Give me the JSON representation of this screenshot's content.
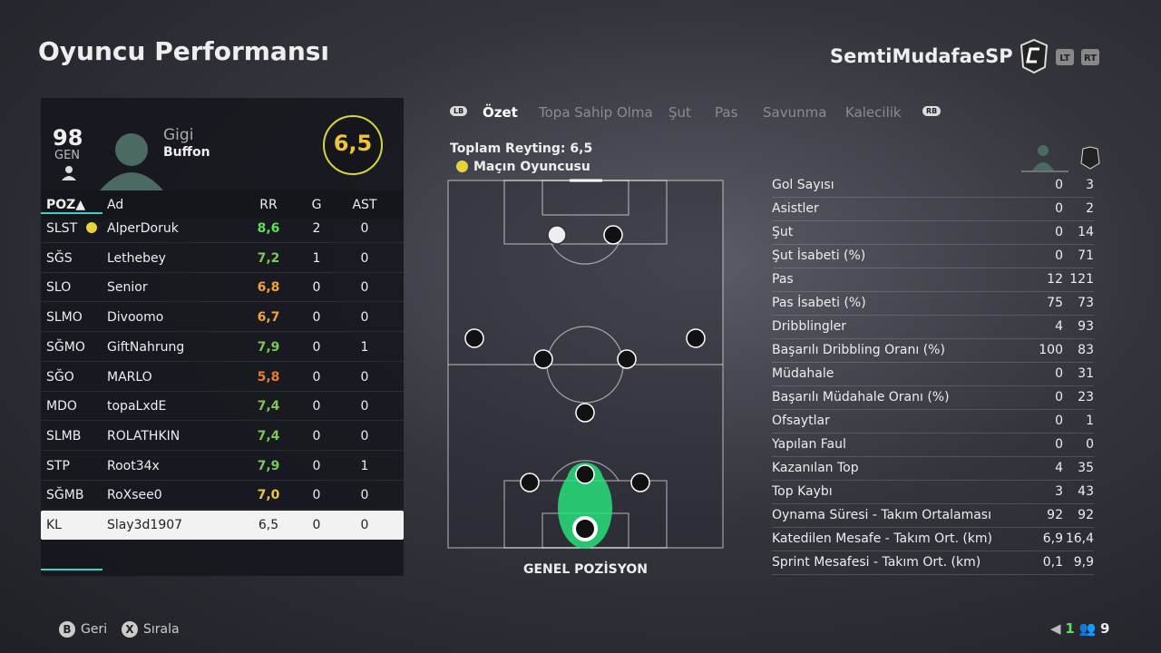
{
  "header": {
    "title": "Oyuncu Performansı",
    "team": "SemtiMudafaeSP",
    "buttons": [
      "LT",
      "RT"
    ]
  },
  "player_card": {
    "overall": "98",
    "position": "GEN",
    "first_name": "Gigi",
    "last_name": "Buffon",
    "match_rating": "6,5"
  },
  "table": {
    "columns": [
      "POZ▲",
      "Ad",
      "RR",
      "G",
      "AST"
    ],
    "rows": [
      {
        "pos": "SLST",
        "name": "AlperDoruk",
        "rr": "8,6",
        "rr_color": "#5ee05a",
        "g": 2,
        "ast": 0,
        "motm": true
      },
      {
        "pos": "SĞS",
        "name": "Lethebey",
        "rr": "7,2",
        "rr_color": "#7cc95a",
        "g": 1,
        "ast": 0
      },
      {
        "pos": "SLO",
        "name": "Senior",
        "rr": "6,8",
        "rr_color": "#f0a53a",
        "g": 0,
        "ast": 0
      },
      {
        "pos": "SLMO",
        "name": "Divoomo",
        "rr": "6,7",
        "rr_color": "#f0a53a",
        "g": 0,
        "ast": 0
      },
      {
        "pos": "SĞMO",
        "name": "GiftNahrung",
        "rr": "7,9",
        "rr_color": "#7cc95a",
        "g": 0,
        "ast": 1
      },
      {
        "pos": "SĞO",
        "name": "MARLO",
        "rr": "5,8",
        "rr_color": "#ef7a2e",
        "g": 0,
        "ast": 0
      },
      {
        "pos": "MDO",
        "name": "topaLxdE",
        "rr": "7,4",
        "rr_color": "#7cc95a",
        "g": 0,
        "ast": 0
      },
      {
        "pos": "SLMB",
        "name": "ROLATHKIN",
        "rr": "7,4",
        "rr_color": "#7cc95a",
        "g": 0,
        "ast": 0
      },
      {
        "pos": "STP",
        "name": "Root34x",
        "rr": "7,9",
        "rr_color": "#7cc95a",
        "g": 0,
        "ast": 1
      },
      {
        "pos": "SĞMB",
        "name": "RoXsee0",
        "rr": "7,0",
        "rr_color": "#f0c43a",
        "g": 0,
        "ast": 0
      },
      {
        "pos": "KL",
        "name": "Slay3d1907",
        "rr": "6,5",
        "rr_color": "#222222",
        "g": 0,
        "ast": 0,
        "selected": true
      }
    ]
  },
  "tabs": {
    "left_button": "LB",
    "right_button": "RB",
    "items": [
      "Özet",
      "Topa Sahip Olma",
      "Şut",
      "Pas",
      "Savunma",
      "Kalecilik"
    ],
    "active": 0
  },
  "pitch": {
    "rating_label": "Toplam Reyting: 6,5",
    "motm_label": "Maçın Oyuncusu",
    "caption": "GENEL POZİSYON"
  },
  "stats": [
    [
      "Gol Sayısı",
      "0",
      "3"
    ],
    [
      "Asistler",
      "0",
      "2"
    ],
    [
      "Şut",
      "0",
      "14"
    ],
    [
      "Şut İsabeti (%)",
      "0",
      "71"
    ],
    [
      "Pas",
      "12",
      "121"
    ],
    [
      "Pas İsabeti (%)",
      "75",
      "73"
    ],
    [
      "Dribblingler",
      "4",
      "93"
    ],
    [
      "Başarılı Dribbling Oranı (%)",
      "100",
      "83"
    ],
    [
      "Müdahale",
      "0",
      "31"
    ],
    [
      "Başarılı Müdahale Oranı (%)",
      "0",
      "23"
    ],
    [
      "Ofsaytlar",
      "0",
      "1"
    ],
    [
      "Yapılan Faul",
      "0",
      "0"
    ],
    [
      "Kazanılan Top",
      "4",
      "35"
    ],
    [
      "Top Kaybı",
      "3",
      "43"
    ],
    [
      "Oynama Süresi - Takım Ortalaması",
      "92",
      "92"
    ],
    [
      "Katedilen Mesafe - Takım Ort. (km)",
      "6,9",
      "16,4"
    ],
    [
      "Sprint Mesafesi - Takım Ort. (km)",
      "0,1",
      "9,9"
    ]
  ],
  "footer": {
    "actions": [
      [
        "B",
        "Geri"
      ],
      [
        "X",
        "Sırala"
      ]
    ],
    "count_a": "1",
    "count_b": "9"
  }
}
